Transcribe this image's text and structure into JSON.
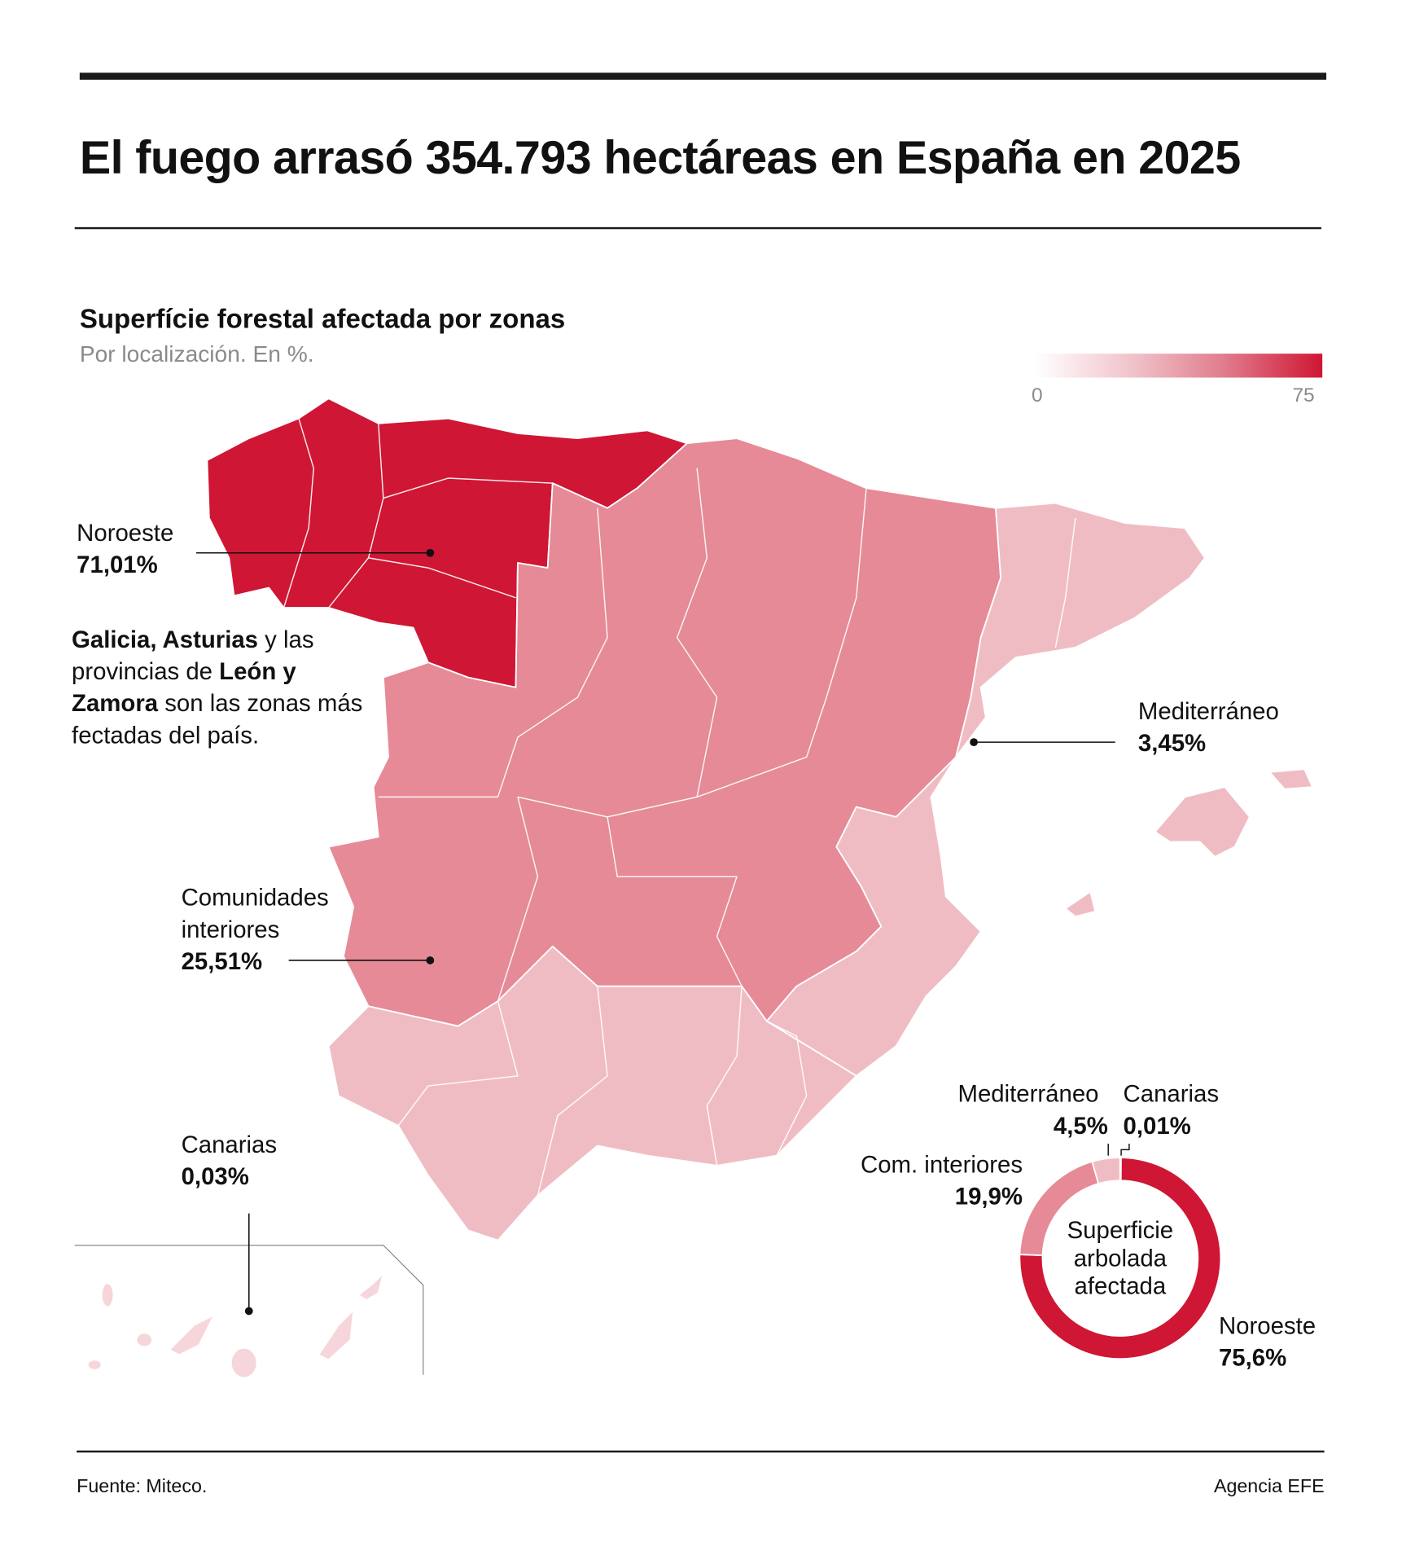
{
  "header": {
    "title": "El fuego arrasó 354.793 hectáreas en España en 2025",
    "subtitle": "Superfície forestal afectada por zonas",
    "note": "Por localización. En %."
  },
  "legend": {
    "min_label": "0",
    "max_label": "75",
    "color_low": "#ffffff",
    "color_high": "#cf1634"
  },
  "colors": {
    "noroeste": "#cf1634",
    "interior": "#e58a96",
    "mediterraneo": "#f0bcc4",
    "canarias": "#f6d6db"
  },
  "map_labels": {
    "noroeste": {
      "name": "Noroeste",
      "value": "71,01%"
    },
    "mediterraneo": {
      "name": "Mediterráneo",
      "value": "3,45%"
    },
    "interior": {
      "name_line1": "Comunidades",
      "name_line2": "interiores",
      "value": "25,51%"
    },
    "canarias": {
      "name": "Canarias",
      "value": "0,03%"
    }
  },
  "annotation": {
    "p1": "Galicia, Asturias",
    "p2": " y las provincias de ",
    "p3": "León y Zamora",
    "p4": " son las zonas más fectadas del país."
  },
  "chart_data": [
    {
      "type": "choropleth",
      "title": "Superfície forestal afectada por zonas",
      "subtitle": "Por localización. En %.",
      "scale_range": [
        0,
        75
      ],
      "regions": [
        {
          "name": "Noroeste",
          "value": 71.01
        },
        {
          "name": "Comunidades interiores",
          "value": 25.51
        },
        {
          "name": "Mediterráneo",
          "value": 3.45
        },
        {
          "name": "Canarias",
          "value": 0.03
        }
      ]
    },
    {
      "type": "pie",
      "donut": true,
      "center_label_lines": [
        "Superficie",
        "arbolada",
        "afectada"
      ],
      "slices": [
        {
          "name": "Noroeste",
          "label": "75,6%",
          "value": 75.6,
          "color": "#cf1634"
        },
        {
          "name": "Com. interiores",
          "label": "19,9%",
          "value": 19.9,
          "color": "#e58a96"
        },
        {
          "name": "Mediterráneo",
          "label": "4,5%",
          "value": 4.5,
          "color": "#f0bcc4"
        },
        {
          "name": "Canarias",
          "label": "0,01%",
          "value": 0.01,
          "color": "#f6d6db"
        }
      ]
    }
  ],
  "footer": {
    "source": "Fuente: Miteco.",
    "credit": "Agencia EFE"
  }
}
